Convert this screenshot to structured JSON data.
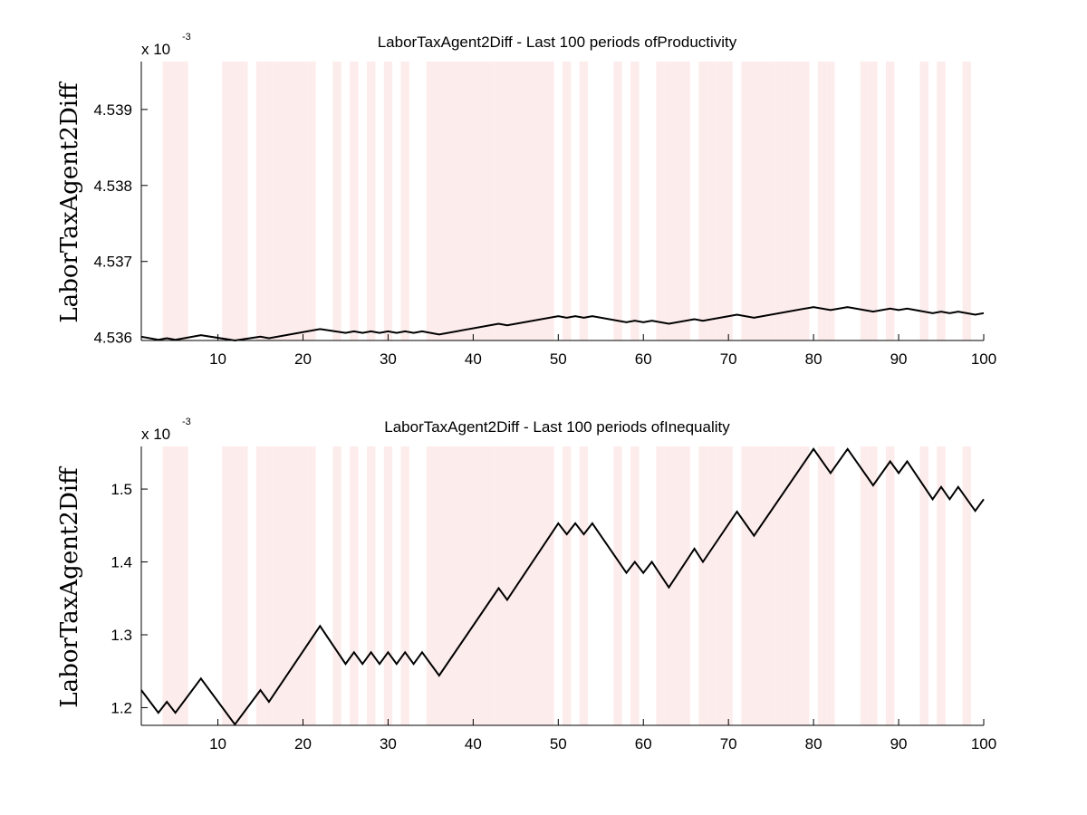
{
  "colors": {
    "shade": "#fdecec",
    "line": "#000000",
    "axis": "#000000"
  },
  "shaded_periods": [
    4,
    5,
    6,
    11,
    12,
    13,
    15,
    16,
    17,
    18,
    19,
    20,
    21,
    24,
    26,
    28,
    30,
    32,
    35,
    36,
    37,
    38,
    39,
    40,
    41,
    42,
    43,
    44,
    45,
    46,
    47,
    48,
    49,
    51,
    53,
    57,
    59,
    62,
    63,
    64,
    65,
    67,
    68,
    69,
    70,
    72,
    73,
    74,
    75,
    76,
    77,
    78,
    79,
    81,
    82,
    86,
    87,
    89,
    93,
    95,
    98
  ],
  "chart_data": [
    {
      "type": "line",
      "title": "LaborTaxAgent2Diff - Last 100 periods ofProductivity",
      "ylabel": "LaborTaxAgent2Diff",
      "exponent_label": "x 10",
      "exponent_power": "-3",
      "xlim": [
        1,
        100
      ],
      "ylim": [
        4.53596,
        4.53963
      ],
      "xticks": [
        10,
        20,
        30,
        40,
        50,
        60,
        70,
        80,
        90,
        100
      ],
      "yticks": [
        4.536,
        4.537,
        4.538,
        4.539
      ],
      "ytick_labels": [
        "4.536",
        "4.537",
        "4.538",
        "4.539"
      ],
      "grid": false,
      "series": [
        {
          "x": [
            1,
            3,
            4,
            5,
            8,
            12,
            15,
            16,
            22,
            25,
            26,
            27,
            28,
            29,
            30,
            31,
            32,
            33,
            34,
            36,
            43,
            44,
            50,
            51,
            52,
            53,
            54,
            58,
            59,
            60,
            61,
            63,
            66,
            67,
            71,
            73,
            80,
            82,
            84,
            87,
            89,
            90,
            91,
            94,
            95,
            96,
            97,
            99,
            100
          ],
          "y": [
            4.53601,
            4.53597,
            4.53599,
            4.53597,
            4.53603,
            4.53596,
            4.53601,
            4.53599,
            4.53611,
            4.53606,
            4.53608,
            4.53606,
            4.53608,
            4.53606,
            4.53608,
            4.53606,
            4.53608,
            4.53606,
            4.53608,
            4.53604,
            4.53618,
            4.53616,
            4.53628,
            4.53626,
            4.53628,
            4.53626,
            4.53628,
            4.5362,
            4.53622,
            4.5362,
            4.53622,
            4.53618,
            4.53624,
            4.53622,
            4.5363,
            4.53626,
            4.5364,
            4.53636,
            4.5364,
            4.53634,
            4.53638,
            4.53636,
            4.53638,
            4.53632,
            4.53634,
            4.53632,
            4.53634,
            4.5363,
            4.53632
          ]
        }
      ]
    },
    {
      "type": "line",
      "title": "LaborTaxAgent2Diff - Last 100 periods ofInequality",
      "ylabel": "LaborTaxAgent2Diff",
      "exponent_label": "x 10",
      "exponent_power": "-3",
      "xlim": [
        1,
        100
      ],
      "ylim": [
        1.1757,
        1.5585
      ],
      "xticks": [
        10,
        20,
        30,
        40,
        50,
        60,
        70,
        80,
        90,
        100
      ],
      "yticks": [
        1.2,
        1.3,
        1.4,
        1.5
      ],
      "ytick_labels": [
        "1.2",
        "1.3",
        "1.4",
        "1.5"
      ],
      "grid": false,
      "series": [
        {
          "x": [
            1,
            3,
            4,
            5,
            8,
            12,
            15,
            16,
            22,
            25,
            26,
            27,
            28,
            29,
            30,
            31,
            32,
            33,
            34,
            36,
            43,
            44,
            50,
            51,
            52,
            53,
            54,
            58,
            59,
            60,
            61,
            63,
            66,
            67,
            71,
            73,
            80,
            82,
            84,
            87,
            89,
            90,
            91,
            94,
            95,
            96,
            97,
            99,
            100
          ],
          "y": [
            1.224,
            1.193,
            1.208,
            1.193,
            1.24,
            1.177,
            1.224,
            1.208,
            1.312,
            1.26,
            1.276,
            1.26,
            1.276,
            1.26,
            1.276,
            1.26,
            1.276,
            1.26,
            1.276,
            1.244,
            1.364,
            1.348,
            1.453,
            1.438,
            1.453,
            1.438,
            1.453,
            1.385,
            1.4,
            1.385,
            1.4,
            1.365,
            1.418,
            1.4,
            1.469,
            1.436,
            1.555,
            1.522,
            1.555,
            1.505,
            1.538,
            1.522,
            1.538,
            1.486,
            1.503,
            1.486,
            1.503,
            1.47,
            1.486
          ]
        }
      ]
    }
  ]
}
